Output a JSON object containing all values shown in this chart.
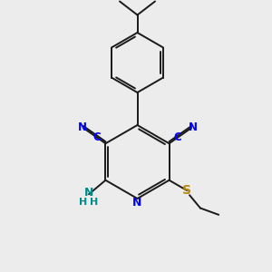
{
  "bg_color": "#ececec",
  "bond_color": "#1a1a1a",
  "N_color": "#0000ff",
  "S_color": "#b8860b",
  "NH2_color": "#008b8b",
  "fig_size": [
    3.0,
    3.0
  ],
  "dpi": 100,
  "xlim": [
    0,
    10
  ],
  "ylim": [
    0,
    10
  ],
  "ring_lw": 1.4
}
